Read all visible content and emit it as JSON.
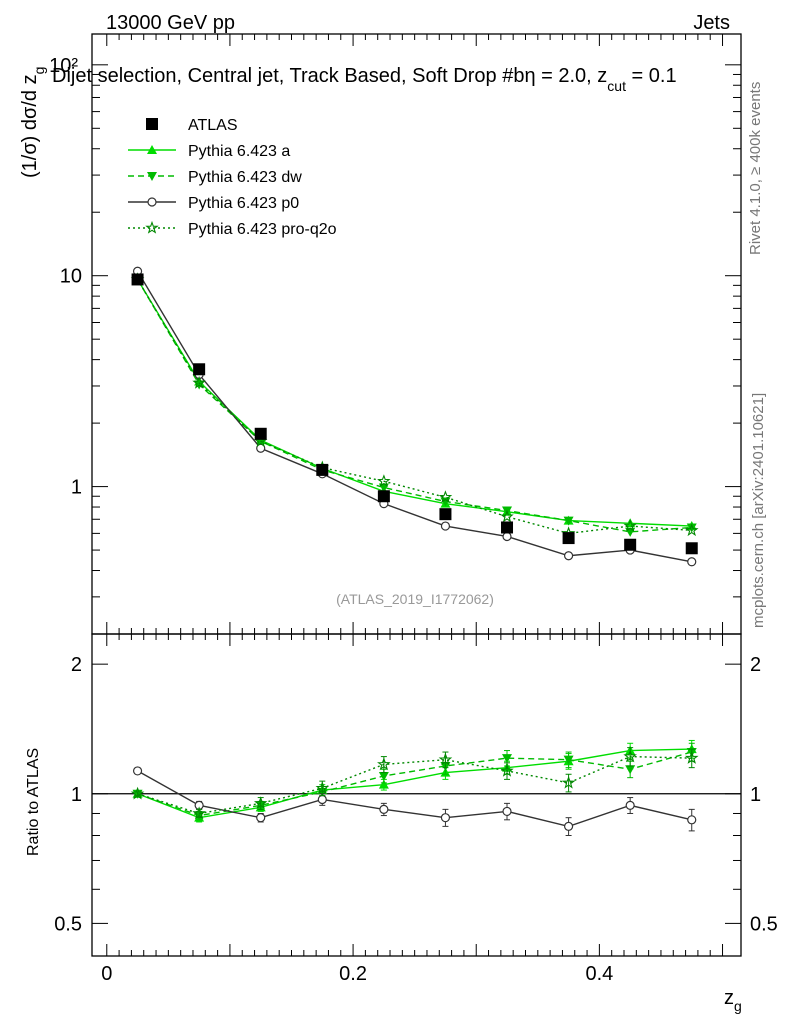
{
  "header": {
    "energy_label": "13000 GeV pp",
    "category_label": "Jets",
    "selection_label": "Dijet selection, Central jet, Track Based, Soft Drop #b",
    "selection_eta": "η = 2.0, z",
    "selection_sub": "cut",
    "selection_end": " = 0.1"
  },
  "side_labels": {
    "rivet": "Rivet 4.1.0, ≥ 400k events",
    "mcplots": "mcplots.cern.ch [arXiv:2401.10621]"
  },
  "watermark": "(ATLAS_2019_I1772062)",
  "axes": {
    "ylabel_main": "(1/σ) dσ/d z",
    "ylabel_main_sub": "g",
    "ylabel_ratio": "Ratio to ATLAS",
    "xlabel": "z",
    "xlabel_sub": "g"
  },
  "colors": {
    "atlas": "#000000",
    "a": "#00dd00",
    "dw": "#00bb00",
    "p0": "#333333",
    "proq2o": "#008800"
  },
  "chart_data": [
    {
      "type": "line",
      "panel": "main",
      "yscale": "log",
      "xlim": [
        -0.012,
        0.515
      ],
      "ylim": [
        0.2,
        140
      ],
      "x_ticks": [
        0,
        0.2,
        0.4
      ],
      "y_ticks": [
        1,
        10,
        100
      ],
      "y_tick_labels": [
        "1",
        "10",
        "10²"
      ],
      "x": [
        0.025,
        0.075,
        0.125,
        0.175,
        0.225,
        0.275,
        0.325,
        0.375,
        0.425,
        0.475
      ],
      "series": [
        {
          "name": "ATLAS",
          "style": "square",
          "values": [
            9.6,
            3.6,
            1.78,
            1.2,
            0.9,
            0.74,
            0.64,
            0.57,
            0.53,
            0.51
          ]
        },
        {
          "name": "Pythia 6.423 a",
          "style": "solid-triangle-up",
          "values": [
            9.6,
            3.15,
            1.66,
            1.22,
            0.95,
            0.83,
            0.76,
            0.69,
            0.67,
            0.65
          ]
        },
        {
          "name": "Pythia 6.423 dw",
          "style": "dashed-triangle-down",
          "values": [
            9.6,
            3.05,
            1.64,
            1.2,
            0.99,
            0.85,
            0.77,
            0.69,
            0.61,
            0.64
          ]
        },
        {
          "name": "Pythia 6.423 p0",
          "style": "solid-open-circle",
          "values": [
            10.5,
            3.4,
            1.52,
            1.15,
            0.83,
            0.65,
            0.58,
            0.47,
            0.5,
            0.44
          ]
        },
        {
          "name": "Pythia 6.423 pro-q2o",
          "style": "dotted-star",
          "values": [
            9.6,
            3.1,
            1.64,
            1.23,
            1.06,
            0.89,
            0.72,
            0.6,
            0.65,
            0.62
          ]
        }
      ]
    },
    {
      "type": "line",
      "panel": "ratio",
      "yscale": "log",
      "ylabel": "Ratio to ATLAS",
      "xlim": [
        -0.012,
        0.515
      ],
      "ylim": [
        0.42,
        2.35
      ],
      "reference_line": 1,
      "x_ticks": [
        0,
        0.2,
        0.4
      ],
      "x_tick_labels": [
        "0",
        "0.2",
        "0.4"
      ],
      "y_ticks": [
        0.5,
        1,
        2
      ],
      "y_tick_labels": [
        "0.5",
        "1",
        "2"
      ],
      "x": [
        0.025,
        0.075,
        0.125,
        0.175,
        0.225,
        0.275,
        0.325,
        0.375,
        0.425,
        0.475
      ],
      "series": [
        {
          "name": "Pythia 6.423 a",
          "style": "solid-triangle-up",
          "values": [
            1.0,
            0.88,
            0.93,
            1.02,
            1.05,
            1.12,
            1.15,
            1.19,
            1.26,
            1.27
          ],
          "errors": [
            0.01,
            0.02,
            0.02,
            0.03,
            0.03,
            0.04,
            0.04,
            0.05,
            0.05,
            0.06
          ]
        },
        {
          "name": "Pythia 6.423 dw",
          "style": "dashed-triangle-down",
          "values": [
            1.0,
            0.89,
            0.94,
            1.01,
            1.1,
            1.16,
            1.21,
            1.2,
            1.14,
            1.25
          ],
          "errors": [
            0.01,
            0.02,
            0.02,
            0.03,
            0.04,
            0.05,
            0.05,
            0.05,
            0.05,
            0.06
          ]
        },
        {
          "name": "Pythia 6.423 p0",
          "style": "solid-open-circle",
          "values": [
            1.13,
            0.94,
            0.88,
            0.97,
            0.92,
            0.88,
            0.91,
            0.84,
            0.94,
            0.87
          ],
          "errors": [
            0.01,
            0.02,
            0.02,
            0.03,
            0.03,
            0.04,
            0.04,
            0.04,
            0.04,
            0.05
          ]
        },
        {
          "name": "Pythia 6.423 pro-q2o",
          "style": "dotted-star",
          "values": [
            1.0,
            0.9,
            0.95,
            1.03,
            1.17,
            1.2,
            1.13,
            1.06,
            1.22,
            1.21
          ],
          "errors": [
            0.01,
            0.02,
            0.03,
            0.04,
            0.05,
            0.05,
            0.05,
            0.05,
            0.06,
            0.06
          ]
        }
      ]
    }
  ]
}
